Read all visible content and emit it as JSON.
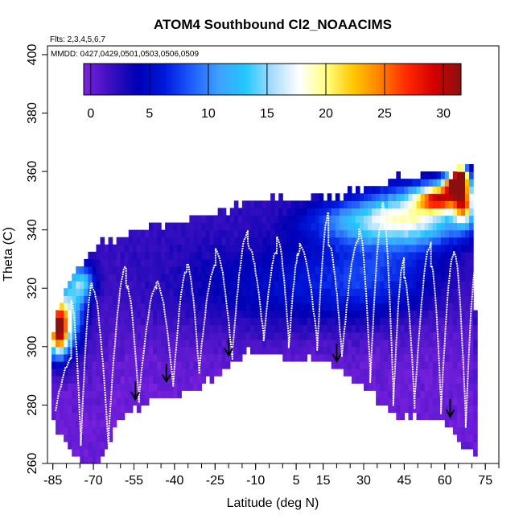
{
  "chart_data": {
    "type": "heatmap",
    "title": "ATOM4 Southbound Cl2_NOAACIMS",
    "flights_label": "Flts: 2,3,4,5,6,7",
    "dates_label": "MMDD: 0427,0429,0501,0503,0506,0509",
    "xlabel": "Latitude (deg N)",
    "ylabel": "Theta (C)",
    "xlim": [
      -87,
      80
    ],
    "ylim": [
      260,
      403
    ],
    "x_ticks": [
      -85,
      -70,
      -55,
      -40,
      -25,
      -10,
      5,
      15,
      30,
      45,
      60,
      75
    ],
    "x_tick_labels": [
      "-85",
      "-70",
      "-55",
      "-40",
      "-25",
      "-10",
      "5",
      "15",
      "30",
      "45",
      "60",
      "75"
    ],
    "y_ticks": [
      260,
      280,
      300,
      320,
      340,
      360,
      380,
      400
    ],
    "y_tick_labels": [
      "260",
      "280",
      "300",
      "320",
      "340",
      "360",
      "380",
      "400"
    ],
    "colorbar": {
      "min": -0.6,
      "max": 31.5,
      "ticks": [
        0,
        5,
        10,
        15,
        20,
        25,
        30
      ],
      "tick_labels": [
        "0",
        "5",
        "10",
        "15",
        "20",
        "25",
        "30"
      ],
      "colors": [
        "#7e22e0",
        "#3a10c0",
        "#0000b4",
        "#0018dc",
        "#1f5cff",
        "#3fa0ff",
        "#22c8ff",
        "#a8dcff",
        "#ffffff",
        "#ffff80",
        "#ffc800",
        "#ff8000",
        "#ff2800",
        "#d40000",
        "#8a1010"
      ]
    },
    "arrows": [
      {
        "lat": -54.5,
        "theta": 282
      },
      {
        "lat": -43,
        "theta": 288
      },
      {
        "lat": -20,
        "theta": 297
      },
      {
        "lat": 20,
        "theta": 295
      },
      {
        "lat": 62,
        "theta": 276
      }
    ],
    "surface_boundary": {
      "lat": [
        -85.5,
        -82,
        -78,
        -74,
        -71,
        -68,
        -65,
        -62,
        -59,
        -56,
        -53,
        -50,
        -46,
        -42,
        -38,
        -34,
        -30,
        -26,
        -22,
        -18,
        -14,
        -10,
        -6,
        -2,
        2,
        6,
        10,
        14,
        18,
        22,
        26,
        30,
        34,
        38,
        42,
        46,
        50,
        54,
        58,
        62,
        66,
        70,
        71.5
      ],
      "theta": [
        278,
        272,
        266,
        262,
        260,
        262,
        268,
        274,
        278,
        280,
        281,
        282,
        284,
        285,
        286,
        287,
        289,
        291,
        294,
        297,
        300,
        301,
        300,
        299,
        298,
        298,
        298,
        297,
        296,
        294,
        292,
        289,
        285,
        281,
        278,
        278,
        278,
        278,
        277,
        274,
        270,
        266,
        265
      ]
    },
    "top_boundary": {
      "lat": [
        -85.5,
        -84,
        -82,
        -80,
        -78,
        -76,
        -74,
        -72,
        -70,
        -68,
        -65,
        -62,
        -59,
        -56,
        -53,
        -50,
        -47,
        -44,
        -41,
        -38,
        -35,
        -32,
        -29,
        -26,
        -23,
        -20,
        -17,
        -14,
        -11,
        -8,
        -5,
        -2,
        1,
        4,
        7,
        10,
        13,
        16,
        19,
        22,
        25,
        28,
        31,
        34,
        37,
        40,
        43,
        46,
        49,
        52,
        55,
        58,
        61,
        64,
        67,
        70,
        71.5
      ],
      "theta": [
        298,
        306,
        313,
        318,
        322,
        324,
        326,
        328,
        331,
        333,
        334,
        335,
        335,
        336,
        337,
        338,
        339,
        339,
        340,
        341,
        341,
        342,
        342,
        343,
        344,
        345,
        346,
        347,
        348,
        348,
        349,
        349,
        349,
        349,
        349,
        349,
        350,
        350,
        350,
        350,
        352,
        352,
        353,
        354,
        354,
        355,
        356,
        356,
        356,
        357,
        357,
        357,
        358,
        358,
        362,
        358,
        300
      ]
    },
    "enhancements": [
      {
        "lat": -83,
        "theta": 306,
        "value": 27,
        "lat_sd": 2.5,
        "th_sd": 6
      },
      {
        "lat": -79,
        "theta": 312,
        "value": 12,
        "lat_sd": 4,
        "th_sd": 9
      },
      {
        "lat": -74,
        "theta": 322,
        "value": 10,
        "lat_sd": 3,
        "th_sd": 4
      },
      {
        "lat": 50,
        "theta": 345,
        "value": 13,
        "lat_sd": 14,
        "th_sd": 7
      },
      {
        "lat": 58,
        "theta": 351,
        "value": 20,
        "lat_sd": 6,
        "th_sd": 3
      },
      {
        "lat": 64,
        "theta": 356,
        "value": 27,
        "lat_sd": 3,
        "th_sd": 2.5
      },
      {
        "lat": 67,
        "theta": 349,
        "value": 17,
        "lat_sd": 2.5,
        "th_sd": 5
      },
      {
        "lat": 66,
        "theta": 359,
        "value": 31,
        "lat_sd": 1.5,
        "th_sd": 2
      },
      {
        "lat": 30,
        "theta": 343,
        "value": 8,
        "lat_sd": 15,
        "th_sd": 5
      },
      {
        "lat": -2,
        "theta": 320,
        "value": 4,
        "lat_sd": 30,
        "th_sd": 12
      },
      {
        "lat": 35,
        "theta": 325,
        "value": 5,
        "lat_sd": 18,
        "th_sd": 10
      }
    ]
  }
}
